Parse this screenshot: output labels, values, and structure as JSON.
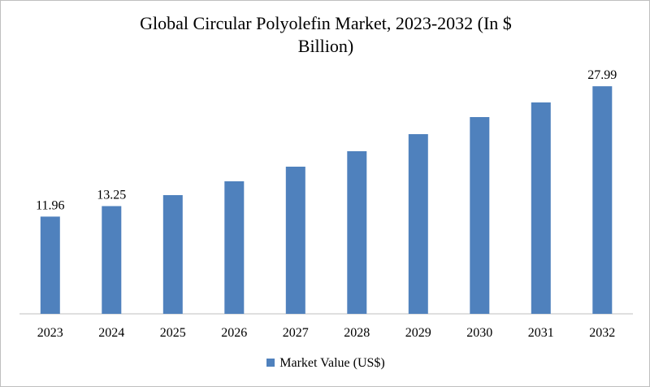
{
  "chart_data": {
    "type": "bar",
    "title_lines": [
      "Global Circular Polyolefin Market, 2023-2032 (In $",
      "Billion)"
    ],
    "categories": [
      "2023",
      "2024",
      "2025",
      "2026",
      "2027",
      "2028",
      "2029",
      "2030",
      "2031",
      "2032"
    ],
    "series": [
      {
        "name": "Market Value (US$)",
        "color": "#4f81bd",
        "values": [
          11.96,
          13.25,
          14.6,
          16.3,
          18.1,
          20.0,
          22.1,
          24.2,
          26.0,
          27.99
        ]
      }
    ],
    "data_labels": [
      "11.96",
      "13.25",
      "",
      "",
      "",
      "",
      "",
      "",
      "",
      "27.99"
    ],
    "ylim": [
      0,
      30
    ],
    "y_axis_visible": false,
    "grid": false,
    "legend_position": "bottom"
  }
}
